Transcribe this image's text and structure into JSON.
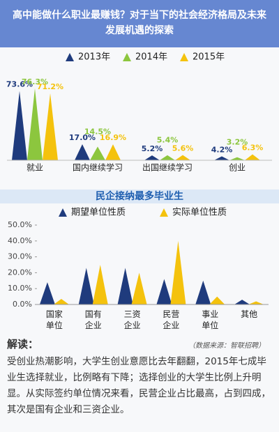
{
  "header": {
    "title": "高中能做什么职业最赚钱？对于当下的社会经济格局及未来发展机遇的探索"
  },
  "chart_data": [
    {
      "type": "bar",
      "categories": [
        "就业",
        "国内继续学习",
        "出国继续学习",
        "创业"
      ],
      "series": [
        {
          "name": "2013年",
          "color": "#1f3b7d",
          "values": [
            73.6,
            17.0,
            5.2,
            4.2
          ],
          "value_labels": [
            "73.6%",
            "17.0%",
            "5.2%",
            "4.2%"
          ]
        },
        {
          "name": "2014年",
          "color": "#8cc63e",
          "values": [
            76.3,
            14.5,
            5.4,
            3.2
          ],
          "value_labels": [
            "76.3%",
            "14.5%",
            "5.4%",
            "3.2%"
          ]
        },
        {
          "name": "2015年",
          "color": "#f4c20d",
          "values": [
            71.2,
            16.9,
            5.6,
            6.3
          ],
          "value_labels": [
            "71.2%",
            "16.9%",
            "5.6%",
            "6.3%"
          ]
        }
      ]
    },
    {
      "type": "bar",
      "title": "民企接纳最多毕业生",
      "categories": [
        "国家\n单位",
        "国有\n企业",
        "三资\n企业",
        "民营\n企业",
        "事业\n单位",
        "其他"
      ],
      "series": [
        {
          "name": "期望单位性质",
          "color": "#1f3b7d",
          "values": [
            14,
            23,
            23,
            16,
            15,
            3
          ]
        },
        {
          "name": "实际单位性质",
          "color": "#f4c20d",
          "values": [
            3.5,
            25,
            20,
            40,
            5,
            2
          ]
        }
      ],
      "ylim": [
        0,
        50
      ],
      "yticks": [
        {
          "value": 0,
          "label": "0.0%"
        },
        {
          "value": 10,
          "label": "10.0%"
        },
        {
          "value": 20,
          "label": "20.0%"
        },
        {
          "value": 30,
          "label": "30.0%"
        },
        {
          "value": 40,
          "label": "40.0%"
        },
        {
          "value": 50,
          "label": "50.0%"
        }
      ]
    }
  ],
  "commentary": {
    "heading": "解读：",
    "source": "（数据来源：智联招聘）",
    "text": "受创业热潮影响，大学生创业意愿比去年翻翻，2015年七成毕业生选择就业，比例略有下降；选择创业的大学生比例上升明显。从实际签约单位情况来看，民营企业占比最高，占到四成，其次是国有企业和三资企业。"
  }
}
